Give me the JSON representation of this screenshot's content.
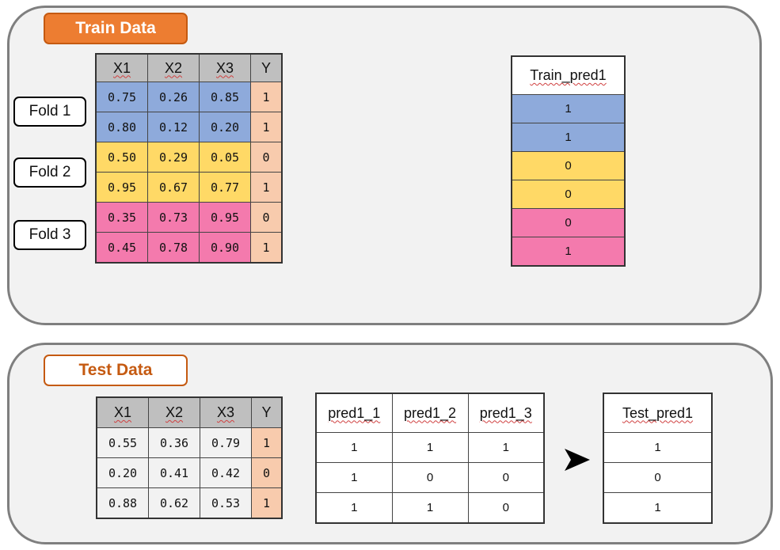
{
  "train": {
    "label": "Train Data",
    "folds": [
      "Fold 1",
      "Fold 2",
      "Fold 3"
    ],
    "headers": [
      "X1",
      "X2",
      "X3",
      "Y"
    ],
    "rows": [
      [
        "0.75",
        "0.26",
        "0.85",
        "1"
      ],
      [
        "0.80",
        "0.12",
        "0.20",
        "1"
      ],
      [
        "0.50",
        "0.29",
        "0.05",
        "0"
      ],
      [
        "0.95",
        "0.67",
        "0.77",
        "1"
      ],
      [
        "0.35",
        "0.73",
        "0.95",
        "0"
      ],
      [
        "0.45",
        "0.78",
        "0.90",
        "1"
      ]
    ],
    "pred_header": "Train_pred1",
    "pred_values": [
      "1",
      "1",
      "0",
      "0",
      "0",
      "1"
    ],
    "fold_colors": {
      "fold1": "#8eaadb",
      "fold2": "#ffd966",
      "fold3": "#f47aad",
      "target": "#f8cbad"
    }
  },
  "test": {
    "label": "Test Data",
    "headers": [
      "X1",
      "X2",
      "X3",
      "Y"
    ],
    "rows": [
      [
        "0.55",
        "0.36",
        "0.79",
        "1"
      ],
      [
        "0.20",
        "0.41",
        "0.42",
        "0"
      ],
      [
        "0.88",
        "0.62",
        "0.53",
        "1"
      ]
    ],
    "pred_headers": [
      "pred1_1",
      "pred1_2",
      "pred1_3"
    ],
    "pred_rows": [
      [
        "1",
        "1",
        "1"
      ],
      [
        "1",
        "0",
        "0"
      ],
      [
        "1",
        "1",
        "0"
      ]
    ],
    "final_header": "Test_pred1",
    "final_values": [
      "1",
      "0",
      "1"
    ],
    "arrow_icon": "arrow-right-icon"
  },
  "colors": {
    "accent": "#ed7d31",
    "accent_dark": "#c55a11",
    "panel_bg": "#f2f2f2",
    "panel_border": "#7f7f7f"
  }
}
